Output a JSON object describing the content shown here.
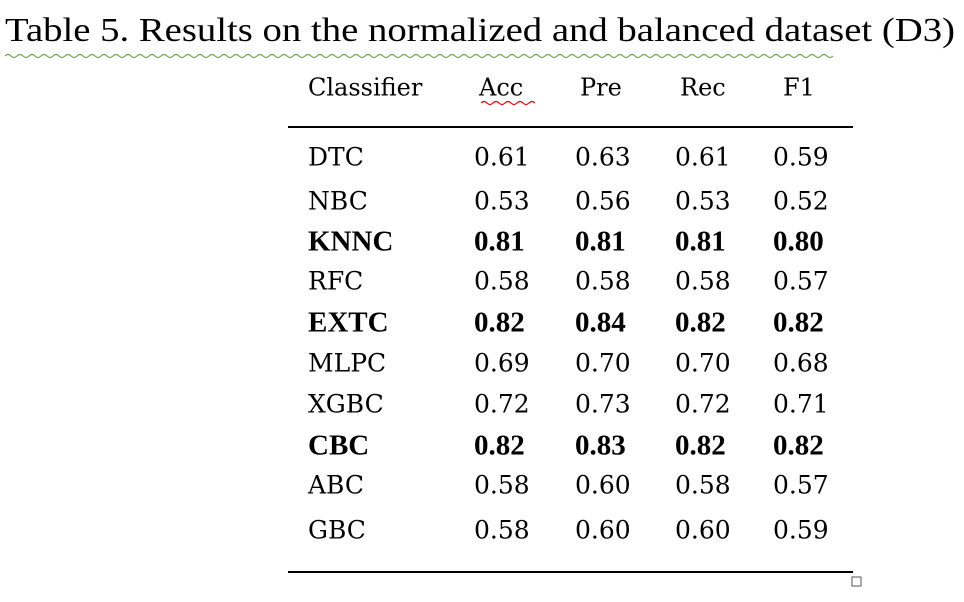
{
  "title": "Table 5. Results on the normalized and balanced dataset (D3)",
  "table": {
    "header": [
      "Classifier",
      "Acc",
      "Pre",
      "Rec",
      "F1"
    ],
    "rows": [
      {
        "cells": [
          "DTC",
          "0.61",
          "0.63",
          "0.61",
          "0.59"
        ],
        "bold": false
      },
      {
        "cells": [
          "NBC",
          "0.53",
          "0.56",
          "0.53",
          "0.52"
        ],
        "bold": false
      },
      {
        "cells": [
          "KNNC",
          "0.81",
          "0.81",
          "0.81",
          "0.80"
        ],
        "bold": true
      },
      {
        "cells": [
          "RFC",
          "0.58",
          "0.58",
          "0.58",
          "0.57"
        ],
        "bold": false
      },
      {
        "cells": [
          "EXTC",
          "0.82",
          "0.84",
          "0.82",
          "0.82"
        ],
        "bold": true
      },
      {
        "cells": [
          "MLPC",
          "0.69",
          "0.70",
          "0.70",
          "0.68"
        ],
        "bold": false
      },
      {
        "cells": [
          "XGBC",
          "0.72",
          "0.73",
          "0.72",
          "0.71"
        ],
        "bold": false
      },
      {
        "cells": [
          "CBC",
          "0.82",
          "0.83",
          "0.82",
          "0.82"
        ],
        "bold": true
      },
      {
        "cells": [
          "ABC",
          "0.58",
          "0.60",
          "0.58",
          "0.57"
        ],
        "bold": false
      },
      {
        "cells": [
          "GBC",
          "0.58",
          "0.60",
          "0.60",
          "0.59"
        ],
        "bold": false
      }
    ]
  }
}
